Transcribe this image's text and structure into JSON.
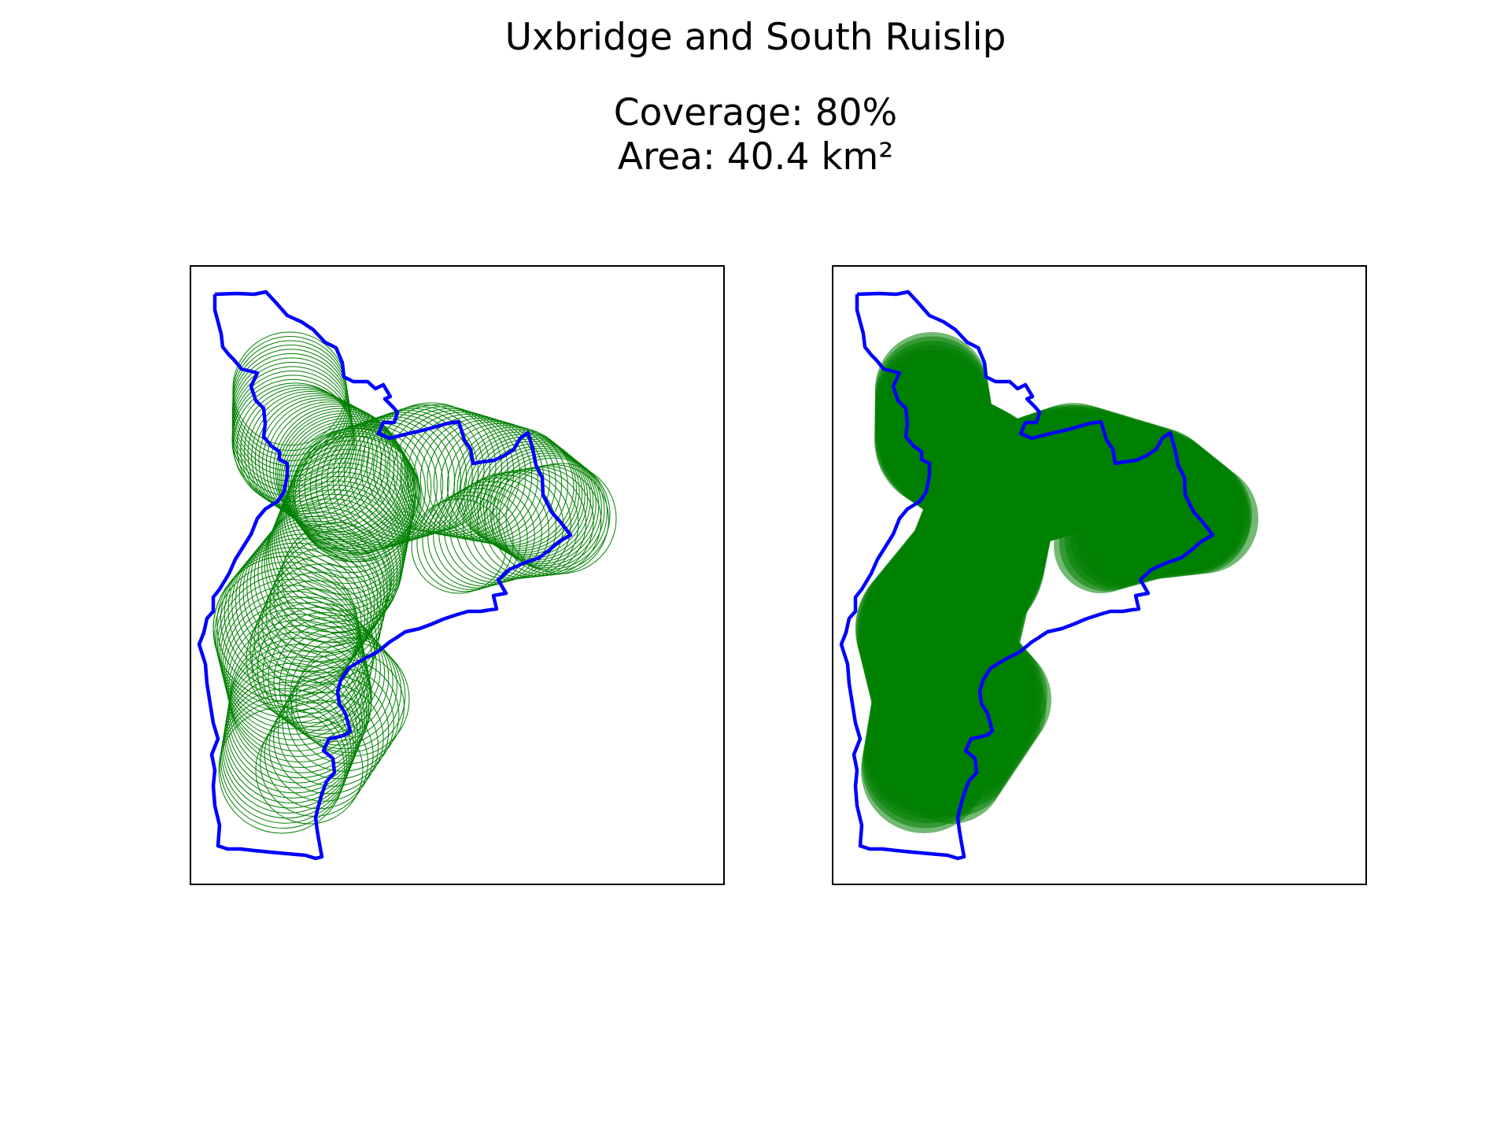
{
  "figure": {
    "title": "Uxbridge and South Ruislip",
    "coverage_text": "Coverage: 80%",
    "area_text": "Area: 40.4 km²"
  },
  "map": {
    "region_name": "Uxbridge and South Ruislip",
    "boundary_color": "#0000ff",
    "coverage_color": "#008000",
    "coverage_percent": 80,
    "area_km2": 40.4,
    "panels": [
      {
        "name": "circle-outlines",
        "style": "outlined"
      },
      {
        "name": "filled-coverage",
        "style": "filled"
      }
    ]
  }
}
